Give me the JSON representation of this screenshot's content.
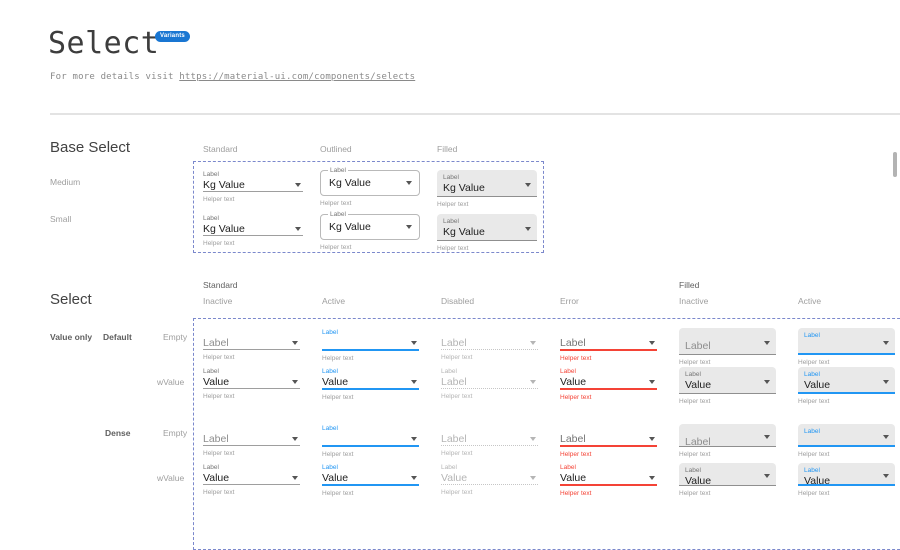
{
  "page": {
    "title": "Select",
    "badge": "Variants",
    "subtitle_prefix": "For more details visit ",
    "subtitle_link": "https://material-ui.com/components/selects"
  },
  "colors": {
    "accent": "#2196f3",
    "error": "#f44336",
    "badge": "#1976d2",
    "dashed": "#7b88cc"
  },
  "base_select": {
    "heading": "Base Select",
    "column_headers": [
      "Standard",
      "Outlined",
      "Filled"
    ],
    "row_labels": [
      "Medium",
      "Small"
    ],
    "rows": [
      {
        "cells": [
          {
            "variant": "standard",
            "size": "medium",
            "label": "Label",
            "value": "Kg  Value",
            "helper": "Helper text"
          },
          {
            "variant": "outlined",
            "size": "medium",
            "label": "Label",
            "value": "Kg  Value",
            "helper": "Helper text"
          },
          {
            "variant": "filled",
            "size": "medium",
            "label": "Label",
            "value": "Kg  Value",
            "helper": "Helper text"
          }
        ]
      },
      {
        "cells": [
          {
            "variant": "standard",
            "size": "small",
            "label": "Label",
            "value": "Kg  Value",
            "helper": "Helper text"
          },
          {
            "variant": "outlined",
            "size": "small",
            "label": "Label",
            "value": "Kg  Value",
            "helper": "Helper text"
          },
          {
            "variant": "filled",
            "size": "small",
            "label": "Label",
            "value": "Kg  Value",
            "helper": "Helper text"
          }
        ]
      }
    ]
  },
  "select_states": {
    "heading": "Select",
    "group_headers": [
      "Standard",
      "Filled"
    ],
    "state_headers": [
      "Inactive",
      "Active",
      "Disabled",
      "Error",
      "Inactive",
      "Active"
    ],
    "row_labels": {
      "group1": "Value only",
      "default": "Default",
      "dense": "Dense",
      "empty": "Empty",
      "wvalue": "wValue"
    },
    "rows": [
      {
        "cells": [
          {
            "variant": "standard",
            "state": "inactive",
            "placeholder": "Label",
            "helper": "Helper text"
          },
          {
            "variant": "standard",
            "state": "active",
            "label": "Label",
            "helper": "Helper text"
          },
          {
            "variant": "standard",
            "state": "disabled",
            "placeholder": "Label",
            "helper": "Helper text"
          },
          {
            "variant": "standard",
            "state": "error",
            "placeholder": "Label",
            "helper": "Helper text"
          },
          {
            "variant": "filled",
            "state": "inactive",
            "placeholder": "Label",
            "helper": "Helper text"
          },
          {
            "variant": "filled",
            "state": "active",
            "label": "Label",
            "helper": "Helper text"
          }
        ]
      },
      {
        "cells": [
          {
            "variant": "standard",
            "state": "inactive",
            "label": "Label",
            "value": "Value",
            "helper": "Helper text"
          },
          {
            "variant": "standard",
            "state": "active",
            "label": "Label",
            "value": "Value",
            "helper": "Helper text"
          },
          {
            "variant": "standard",
            "state": "disabled",
            "label": "Label",
            "value": "Label",
            "helper": "Helper text"
          },
          {
            "variant": "standard",
            "state": "error",
            "label": "Label",
            "value": "Value",
            "helper": "Helper text"
          },
          {
            "variant": "filled",
            "state": "inactive",
            "label": "Label",
            "value": "Value",
            "helper": "Helper text"
          },
          {
            "variant": "filled",
            "state": "active",
            "label": "Label",
            "value": "Value",
            "helper": "Helper text"
          }
        ]
      },
      {
        "cells": [
          {
            "variant": "standard",
            "state": "inactive",
            "dense": true,
            "placeholder": "Label",
            "helper": "Helper text"
          },
          {
            "variant": "standard",
            "state": "active",
            "dense": true,
            "label": "Label",
            "helper": "Helper text"
          },
          {
            "variant": "standard",
            "state": "disabled",
            "dense": true,
            "placeholder": "Label",
            "helper": "Helper text"
          },
          {
            "variant": "standard",
            "state": "error",
            "dense": true,
            "placeholder": "Label",
            "helper": "Helper text"
          },
          {
            "variant": "filled",
            "state": "inactive",
            "dense": true,
            "placeholder": "Label",
            "helper": "Helper text"
          },
          {
            "variant": "filled",
            "state": "active",
            "dense": true,
            "label": "Label",
            "helper": "Helper text"
          }
        ]
      },
      {
        "cells": [
          {
            "variant": "standard",
            "state": "inactive",
            "dense": true,
            "label": "Label",
            "value": "Value",
            "helper": "Helper text"
          },
          {
            "variant": "standard",
            "state": "active",
            "dense": true,
            "label": "Label",
            "value": "Value",
            "helper": "Helper text"
          },
          {
            "variant": "standard",
            "state": "disabled",
            "dense": true,
            "label": "Label",
            "value": "Value",
            "helper": "Helper text"
          },
          {
            "variant": "standard",
            "state": "error",
            "dense": true,
            "label": "Label",
            "value": "Value",
            "helper": "Helper text"
          },
          {
            "variant": "filled",
            "state": "inactive",
            "dense": true,
            "label": "Label",
            "value": "Value",
            "helper": "Helper text"
          },
          {
            "variant": "filled",
            "state": "active",
            "dense": true,
            "label": "Label",
            "value": "Value",
            "helper": "Helper text"
          }
        ]
      }
    ]
  }
}
